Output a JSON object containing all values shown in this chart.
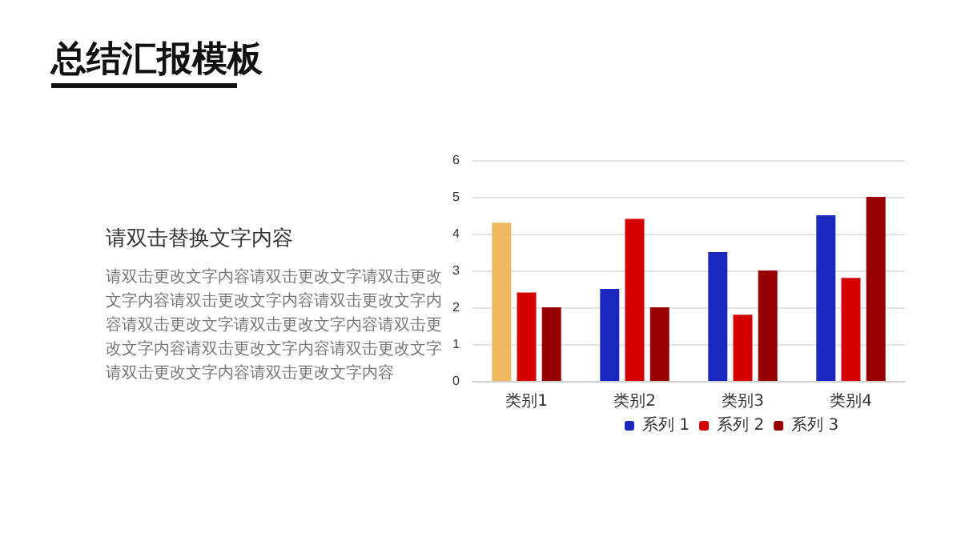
{
  "chart_data": {
    "type": "bar",
    "title": "总结汇报模板",
    "subtitle": "请双击替换文字内容",
    "annotations": [
      "请双击更改文字内容请双击更改文字请双击更改文字内容请双击更改文字内容请双击更改文字内容请双击更改文字请双击更改文字内容请双击更改文字内容请双击更改文字内容请双击更改文字请双击更改文字内容请双击更改文字内容"
    ],
    "categories": [
      "类别1",
      "类别2",
      "类别3",
      "类别4"
    ],
    "series": [
      {
        "name": "系列 1",
        "color": "#1a28c0",
        "colors": [
          "#f0b860",
          "#1a28c0",
          "#1a28c0",
          "#1a28c0"
        ],
        "values": [
          4.3,
          2.5,
          3.5,
          4.5
        ]
      },
      {
        "name": "系列 2",
        "color": "#d40000",
        "values": [
          2.4,
          4.4,
          1.8,
          2.8
        ]
      },
      {
        "name": "系列 3",
        "color": "#960000",
        "values": [
          2,
          2,
          3,
          5
        ]
      }
    ],
    "ylim": [
      0,
      6
    ],
    "yticks": [
      0,
      1,
      2,
      3,
      4,
      5,
      6
    ],
    "grid": "y",
    "legend": "bottom"
  }
}
